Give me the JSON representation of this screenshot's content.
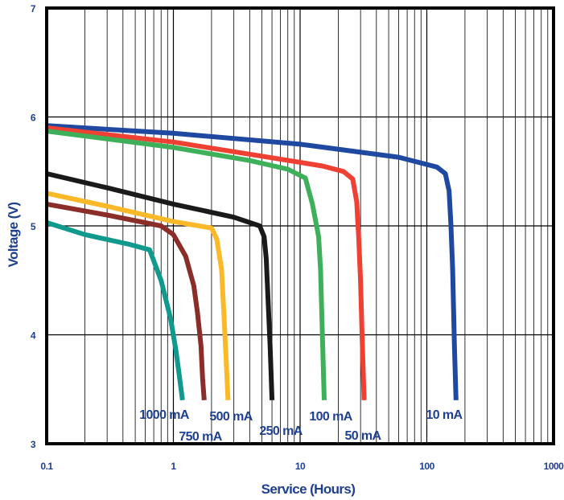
{
  "chart_data": {
    "type": "line",
    "xlabel": "Service (Hours)",
    "ylabel": "Voltage (V)",
    "x_scale": "log",
    "xlim": [
      0.1,
      1000
    ],
    "ylim": [
      3,
      7
    ],
    "x_tick_labels": [
      "0.1",
      "1",
      "10",
      "100",
      "1000"
    ],
    "y_tick_labels": [
      "3",
      "4",
      "5",
      "6",
      "7"
    ],
    "grid": true,
    "colors": {
      "axis_text": "#1f3f8f",
      "frame": "#000000",
      "grid": "#000000"
    },
    "series": [
      {
        "name": "10 mA",
        "color": "#1f48a0",
        "x": [
          0.1,
          1,
          10,
          60,
          120,
          140,
          150,
          155,
          160,
          165,
          170
        ],
        "y": [
          5.92,
          5.85,
          5.75,
          5.63,
          5.54,
          5.48,
          5.32,
          5.0,
          4.6,
          3.9,
          3.4
        ]
      },
      {
        "name": "50 mA",
        "color": "#ee4033",
        "x": [
          0.1,
          1,
          5,
          15,
          22,
          26,
          28,
          28.5,
          29,
          30,
          31,
          32
        ],
        "y": [
          5.9,
          5.77,
          5.64,
          5.55,
          5.5,
          5.43,
          5.22,
          5.05,
          4.9,
          4.5,
          3.9,
          3.4
        ]
      },
      {
        "name": "100 mA",
        "color": "#3fb05a",
        "x": [
          0.1,
          1,
          4,
          8,
          11,
          12.5,
          13.5,
          14,
          14.5,
          15,
          15.5
        ],
        "y": [
          5.87,
          5.72,
          5.6,
          5.52,
          5.44,
          5.2,
          5.0,
          4.9,
          4.6,
          4.0,
          3.4
        ]
      },
      {
        "name": "250 mA",
        "color": "#1a1a1a",
        "x": [
          0.1,
          0.3,
          1,
          3,
          4.8,
          5.2,
          5.4,
          5.6,
          5.8,
          6.0
        ],
        "y": [
          5.48,
          5.35,
          5.2,
          5.08,
          5.0,
          4.9,
          4.7,
          4.3,
          3.9,
          3.4
        ]
      },
      {
        "name": "500 mA",
        "color": "#fbb829",
        "x": [
          0.1,
          0.3,
          1,
          2,
          2.2,
          2.4,
          2.5,
          2.6,
          2.7
        ],
        "y": [
          5.3,
          5.18,
          5.04,
          4.98,
          4.88,
          4.6,
          4.2,
          3.8,
          3.4
        ]
      },
      {
        "name": "750 mA",
        "color": "#8b2e2a",
        "x": [
          0.1,
          0.3,
          0.8,
          1.0,
          1.25,
          1.45,
          1.55,
          1.65,
          1.7,
          1.75
        ],
        "y": [
          5.2,
          5.1,
          5.0,
          4.92,
          4.72,
          4.45,
          4.2,
          3.9,
          3.6,
          3.4
        ]
      },
      {
        "name": "1000 mA",
        "color": "#109a8e",
        "x": [
          0.1,
          0.2,
          0.45,
          0.65,
          0.8,
          0.95,
          1.05,
          1.12,
          1.18
        ],
        "y": [
          5.03,
          4.92,
          4.83,
          4.78,
          4.5,
          4.15,
          3.85,
          3.6,
          3.4
        ]
      }
    ],
    "series_labels": [
      {
        "text": "1000 mA",
        "color": "#1f3f8f"
      },
      {
        "text": "750 mA",
        "color": "#1f3f8f"
      },
      {
        "text": "500 mA",
        "color": "#1f3f8f"
      },
      {
        "text": "250 mA",
        "color": "#1f3f8f"
      },
      {
        "text": "100 mA",
        "color": "#1f3f8f"
      },
      {
        "text": "50 mA",
        "color": "#1f3f8f"
      },
      {
        "text": "10 mA",
        "color": "#1f3f8f"
      }
    ]
  }
}
